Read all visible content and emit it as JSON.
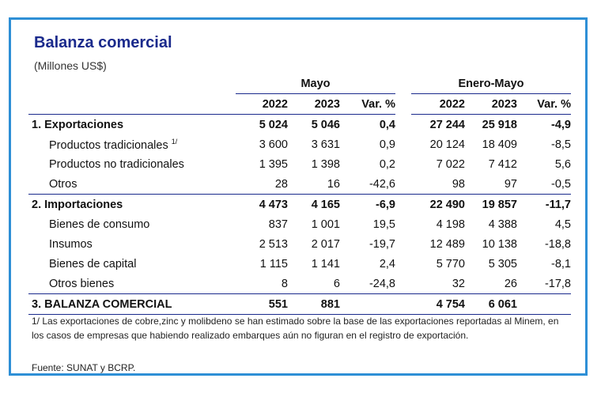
{
  "title": "Balanza comercial",
  "subtitle": "(Millones US$)",
  "groups": {
    "mayo": "Mayo",
    "enero_mayo": "Enero-Mayo"
  },
  "columns": [
    "2022",
    "2023",
    "Var. %",
    "2022",
    "2023",
    "Var. %"
  ],
  "rows": [
    {
      "label": "1. Exportaciones",
      "cells": [
        "5 024",
        "5 046",
        "0,4",
        "27 244",
        "25 918",
        "-4,9"
      ]
    },
    {
      "label": "Productos tradicionales",
      "sup": "1/",
      "cells": [
        "3 600",
        "3 631",
        "0,9",
        "20 124",
        "18 409",
        "-8,5"
      ]
    },
    {
      "label": "Productos no tradicionales",
      "cells": [
        "1 395",
        "1 398",
        "0,2",
        "7 022",
        "7 412",
        "5,6"
      ]
    },
    {
      "label": "Otros",
      "cells": [
        "28",
        "16",
        "-42,6",
        "98",
        "97",
        "-0,5"
      ]
    },
    {
      "label": "2. Importaciones",
      "cells": [
        "4 473",
        "4 165",
        "-6,9",
        "22 490",
        "19 857",
        "-11,7"
      ]
    },
    {
      "label": "Bienes de consumo",
      "cells": [
        "837",
        "1 001",
        "19,5",
        "4 198",
        "4 388",
        "4,5"
      ]
    },
    {
      "label": "Insumos",
      "cells": [
        "2 513",
        "2 017",
        "-19,7",
        "12 489",
        "10 138",
        "-18,8"
      ]
    },
    {
      "label": "Bienes de capital",
      "cells": [
        "1 115",
        "1 141",
        "2,4",
        "5 770",
        "5 305",
        "-8,1"
      ]
    },
    {
      "label": "Otros bienes",
      "cells": [
        "8",
        "6",
        "-24,8",
        "32",
        "26",
        "-17,8"
      ]
    },
    {
      "label": "3. BALANZA COMERCIAL",
      "cells": [
        "551",
        "881",
        "",
        "4 754",
        "6 061",
        ""
      ]
    }
  ],
  "note": "1/ Las exportaciones de cobre,zinc y molibdeno se han estimado sobre la base de las exportaciones reportadas al Minem, en los casos de empresas que habiendo realizado embarques aún no figuran en el registro de exportación.",
  "source": "Fuente: SUNAT y BCRP."
}
